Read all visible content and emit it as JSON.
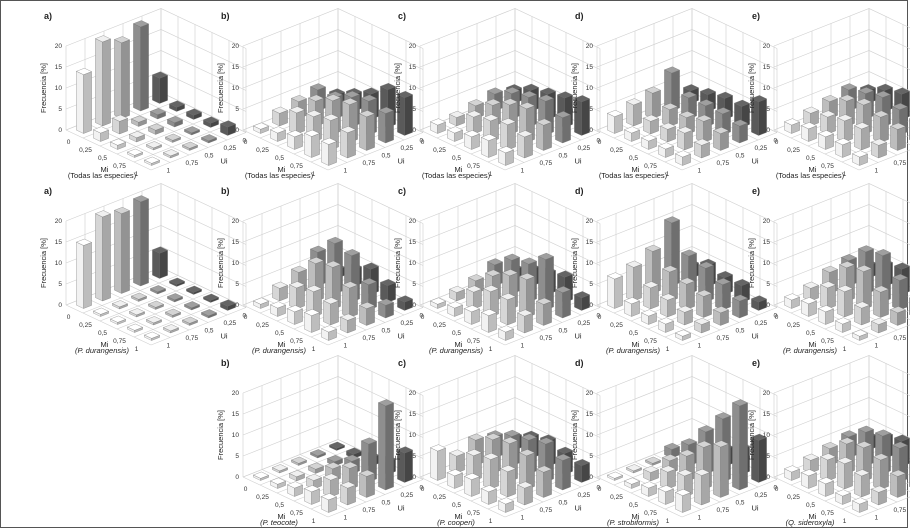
{
  "common": {
    "ylabel": "Frecuencia [%]",
    "xlabel": "Mi",
    "zlabel": "Ui",
    "x_ticks": [
      "0",
      "0,25",
      "0,5",
      "0,75",
      "1"
    ],
    "z_ticks": [
      "0",
      "0,25",
      "0,5",
      "0,75",
      "1"
    ],
    "y_ticks": [
      "0",
      "5",
      "10",
      "15",
      "20"
    ]
  },
  "chart_data": [
    {
      "type": "bar3d",
      "row": 0,
      "col": 0,
      "letter": "a)",
      "caption": "(Todas las especies)",
      "italic": false,
      "ylim": [
        0,
        20
      ],
      "series_axis": "Ui",
      "x": [
        "0",
        "0,25",
        "0,5",
        "0,75",
        "1"
      ],
      "ui": [
        "0",
        "0,25",
        "0,5",
        "0,75",
        "1"
      ],
      "values": [
        [
          14,
          20,
          18,
          20,
          6
        ],
        [
          2,
          3,
          1,
          1,
          1
        ],
        [
          1,
          1,
          1,
          1,
          1
        ],
        [
          0.5,
          0.5,
          0.5,
          0.5,
          1
        ],
        [
          0.5,
          0.5,
          0.5,
          0.5,
          2
        ]
      ]
    },
    {
      "type": "bar3d",
      "row": 0,
      "col": 1,
      "letter": "b)",
      "caption": "(Todas las especies)",
      "italic": false,
      "ylim": [
        0,
        20
      ],
      "values": [
        [
          1,
          3,
          4,
          5,
          2
        ],
        [
          2,
          5,
          6,
          5,
          4
        ],
        [
          3,
          6,
          8,
          7,
          6
        ],
        [
          5,
          7,
          9,
          8,
          9
        ],
        [
          5,
          6,
          8,
          7,
          9
        ]
      ]
    },
    {
      "type": "bar3d",
      "row": 0,
      "col": 2,
      "letter": "c)",
      "caption": "(Todas las especies)",
      "italic": false,
      "ylim": [
        0,
        20
      ],
      "values": [
        [
          2,
          2,
          3,
          4,
          3
        ],
        [
          2,
          4,
          5,
          6,
          5
        ],
        [
          3,
          5,
          7,
          7,
          6
        ],
        [
          4,
          6,
          8,
          8,
          7
        ],
        [
          3,
          5,
          6,
          6,
          8
        ]
      ]
    },
    {
      "type": "bar3d",
      "row": 0,
      "col": 3,
      "letter": "d)",
      "caption": "(Todas las especies)",
      "italic": false,
      "ylim": [
        0,
        20
      ],
      "values": [
        [
          4,
          5,
          6,
          9,
          3
        ],
        [
          2,
          3,
          4,
          5,
          4
        ],
        [
          2,
          3,
          4,
          5,
          5
        ],
        [
          2,
          4,
          5,
          5,
          5
        ],
        [
          2,
          3,
          4,
          4,
          8
        ]
      ]
    },
    {
      "type": "bar3d",
      "row": 0,
      "col": 4,
      "letter": "e)",
      "caption": "(Todas las especies)",
      "italic": false,
      "ylim": [
        0,
        20
      ],
      "values": [
        [
          2,
          3,
          4,
          5,
          3
        ],
        [
          3,
          4,
          6,
          6,
          5
        ],
        [
          3,
          5,
          7,
          7,
          6
        ],
        [
          3,
          5,
          6,
          6,
          6
        ],
        [
          2,
          3,
          5,
          5,
          7
        ]
      ]
    },
    {
      "type": "bar3d",
      "row": 1,
      "col": 0,
      "letter": "a)",
      "caption": "(P. durangensis)",
      "italic": true,
      "ylim": [
        0,
        20
      ],
      "values": [
        [
          15,
          20,
          19,
          20,
          6
        ],
        [
          0.5,
          0.5,
          0.5,
          0.5,
          0.5
        ],
        [
          0.5,
          0.5,
          0.5,
          0.5,
          0.5
        ],
        [
          0.5,
          0.5,
          0.5,
          0.5,
          0.5
        ],
        [
          0.5,
          0.5,
          0.5,
          0.5,
          1
        ]
      ]
    },
    {
      "type": "bar3d",
      "row": 1,
      "col": 1,
      "letter": "b)",
      "caption": "(P. durangensis)",
      "italic": true,
      "ylim": [
        0,
        20
      ],
      "values": [
        [
          1,
          3,
          5,
          8,
          2
        ],
        [
          2,
          5,
          9,
          12,
          4
        ],
        [
          3,
          6,
          10,
          11,
          6
        ],
        [
          4,
          5,
          7,
          6,
          4
        ],
        [
          2,
          3,
          4,
          3,
          2
        ]
      ]
    },
    {
      "type": "bar3d",
      "row": 1,
      "col": 2,
      "letter": "c)",
      "caption": "(P. durangensis)",
      "italic": true,
      "ylim": [
        0,
        20
      ],
      "values": [
        [
          1,
          2,
          3,
          5,
          2
        ],
        [
          2,
          4,
          6,
          8,
          4
        ],
        [
          3,
          6,
          8,
          9,
          5
        ],
        [
          4,
          6,
          9,
          12,
          6
        ],
        [
          2,
          4,
          5,
          6,
          3
        ]
      ]
    },
    {
      "type": "bar3d",
      "row": 1,
      "col": 3,
      "letter": "d)",
      "caption": "(P. durangensis)",
      "italic": true,
      "ylim": [
        0,
        20
      ],
      "values": [
        [
          7,
          8,
          10,
          15,
          3
        ],
        [
          3,
          5,
          7,
          9,
          5
        ],
        [
          2,
          4,
          6,
          8,
          4
        ],
        [
          2,
          3,
          5,
          6,
          4
        ],
        [
          1,
          2,
          3,
          4,
          2
        ]
      ]
    },
    {
      "type": "bar3d",
      "row": 1,
      "col": 4,
      "letter": "e)",
      "caption": "(P. durangensis)",
      "italic": true,
      "ylim": [
        0,
        20
      ],
      "values": [
        [
          2,
          3,
          5,
          6,
          3
        ],
        [
          3,
          5,
          8,
          10,
          5
        ],
        [
          3,
          6,
          9,
          11,
          6
        ],
        [
          2,
          4,
          6,
          7,
          4
        ],
        [
          1,
          2,
          3,
          4,
          2
        ]
      ]
    },
    {
      "type": "bar3d",
      "row": 2,
      "col": 1,
      "letter": "b)",
      "caption": "(P. teocote)",
      "italic": true,
      "ylim": [
        0,
        20
      ],
      "values": [
        [
          0.5,
          0.5,
          0.5,
          0.5,
          0.5
        ],
        [
          1,
          1,
          1,
          1,
          1
        ],
        [
          2,
          2,
          3,
          3,
          2
        ],
        [
          3,
          4,
          5,
          9,
          3
        ],
        [
          3,
          4,
          5,
          20,
          7
        ]
      ]
    },
    {
      "type": "bar3d",
      "row": 2,
      "col": 2,
      "letter": "c)",
      "caption": "(P. cooperi)",
      "italic": true,
      "ylim": [
        0,
        20
      ],
      "values": [
        [
          7,
          4,
          6,
          5,
          3
        ],
        [
          3,
          6,
          8,
          7,
          5
        ],
        [
          4,
          7,
          9,
          8,
          6
        ],
        [
          3,
          6,
          8,
          9,
          5
        ],
        [
          2,
          4,
          6,
          7,
          4
        ]
      ]
    },
    {
      "type": "bar3d",
      "row": 2,
      "col": 3,
      "letter": "d)",
      "caption": "(P. strobiformis)",
      "italic": true,
      "ylim": [
        0,
        20
      ],
      "values": [
        [
          0.5,
          0.5,
          0.5,
          2,
          0.5
        ],
        [
          1,
          2,
          3,
          5,
          2
        ],
        [
          2,
          4,
          6,
          10,
          4
        ],
        [
          3,
          5,
          10,
          15,
          6
        ],
        [
          4,
          7,
          12,
          20,
          10
        ]
      ]
    },
    {
      "type": "bar3d",
      "row": 2,
      "col": 4,
      "letter": "e)",
      "caption": "(Q. sideroxyla)",
      "italic": true,
      "ylim": [
        0,
        20
      ],
      "values": [
        [
          2,
          3,
          4,
          5,
          3
        ],
        [
          3,
          5,
          7,
          8,
          5
        ],
        [
          3,
          6,
          8,
          9,
          6
        ],
        [
          2,
          5,
          7,
          8,
          5
        ],
        [
          2,
          3,
          5,
          6,
          4
        ]
      ]
    }
  ],
  "colors": {
    "bar_front": [
      "#f2f2f2",
      "#d6d6d6",
      "#bdbdbd",
      "#8e8e8e",
      "#5a5a5a"
    ],
    "grid": "#cfcfcf",
    "frame": "#555555"
  }
}
